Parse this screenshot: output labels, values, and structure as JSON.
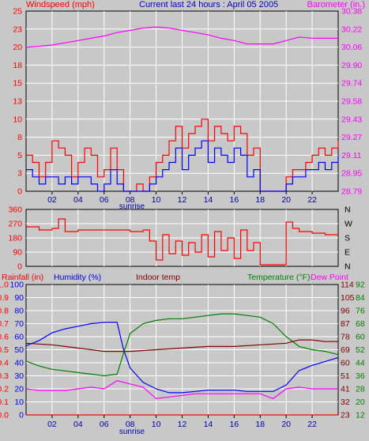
{
  "chart_data": [
    {
      "type": "line",
      "header": {
        "left": "Windspeed (mph)",
        "center": "Current last 24 hours : April 05 2005",
        "right": "Barometer (in.)"
      },
      "x_ticks": [
        "02",
        "04",
        "06",
        "08",
        "10",
        "12",
        "14",
        "16",
        "18",
        "20",
        "22"
      ],
      "x_marker": "sunrise",
      "x_range": [
        0,
        24
      ],
      "y_left": {
        "ticks": [
          "0",
          "3",
          "5",
          "8",
          "10",
          "13",
          "15",
          "18",
          "20",
          "23",
          "25"
        ],
        "range": [
          0,
          25
        ]
      },
      "y_right": {
        "ticks": [
          "28.79",
          "28.95",
          "29.11",
          "29.27",
          "29.43",
          "29.58",
          "29.74",
          "29.90",
          "30.06",
          "30.22",
          "30.38"
        ],
        "range": [
          28.79,
          30.38
        ]
      },
      "series": [
        {
          "name": "Barometer",
          "axis": "right",
          "color": "#ff00ff",
          "x": [
            0,
            1,
            2,
            3,
            4,
            5,
            6,
            7,
            8,
            9,
            10,
            11,
            12,
            13,
            14,
            15,
            16,
            17,
            18,
            19,
            20,
            21,
            22,
            23,
            24
          ],
          "y": [
            30.06,
            30.07,
            30.08,
            30.1,
            30.12,
            30.14,
            30.16,
            30.19,
            30.21,
            30.23,
            30.24,
            30.23,
            30.21,
            30.19,
            30.17,
            30.14,
            30.12,
            30.09,
            30.09,
            30.09,
            30.12,
            30.15,
            30.14,
            30.14,
            30.14
          ]
        },
        {
          "name": "Wind gust",
          "axis": "left",
          "color": "#ff0000",
          "x": [
            0,
            0.5,
            1,
            1.5,
            2,
            2.5,
            3,
            3.5,
            4,
            4.5,
            5,
            5.5,
            6,
            6.5,
            7,
            7.5,
            8,
            8.5,
            9,
            9.5,
            10,
            10.5,
            11,
            11.5,
            12,
            12.5,
            13,
            13.5,
            14,
            14.5,
            15,
            15.5,
            16,
            16.5,
            17,
            17.5,
            18,
            18.5,
            19,
            19.5,
            20,
            20.5,
            21,
            21.5,
            22,
            22.5,
            23,
            23.5,
            24
          ],
          "y": [
            5,
            4,
            2,
            4,
            7,
            6,
            5,
            2,
            4,
            6,
            5,
            2,
            3,
            6,
            3,
            0,
            0,
            1,
            0,
            2,
            4,
            5,
            7,
            9,
            6,
            8,
            9,
            10,
            7,
            9,
            8,
            7,
            9,
            8,
            5,
            6,
            0,
            0,
            0,
            0,
            2,
            3,
            3,
            4,
            5,
            6,
            5,
            6,
            7
          ]
        },
        {
          "name": "Windspeed",
          "axis": "left",
          "color": "#0000ff",
          "x": [
            0,
            0.5,
            1,
            1.5,
            2,
            2.5,
            3,
            3.5,
            4,
            4.5,
            5,
            5.5,
            6,
            6.5,
            7,
            7.5,
            8,
            8.5,
            9,
            9.5,
            10,
            10.5,
            11,
            11.5,
            12,
            12.5,
            13,
            13.5,
            14,
            14.5,
            15,
            15.5,
            16,
            16.5,
            17,
            17.5,
            18,
            18.5,
            19,
            19.5,
            20,
            20.5,
            21,
            21.5,
            22,
            22.5,
            23,
            23.5,
            24
          ],
          "y": [
            3,
            2,
            1,
            2,
            2,
            1,
            2,
            1,
            2,
            2,
            1,
            0,
            1,
            3,
            1,
            0,
            0,
            0,
            0,
            1,
            2,
            3,
            4,
            6,
            3,
            5,
            6,
            7,
            4,
            6,
            5,
            4,
            6,
            5,
            2,
            3,
            0,
            0,
            0,
            0,
            1,
            2,
            2,
            3,
            3,
            4,
            3,
            4,
            5
          ]
        }
      ]
    },
    {
      "type": "line",
      "title": "",
      "x_range": [
        0,
        24
      ],
      "y_left": {
        "ticks": [
          "0",
          "90",
          "180",
          "270",
          "360"
        ],
        "range": [
          0,
          360
        ]
      },
      "y_right": {
        "ticks": [
          "N",
          "E",
          "S",
          "W",
          "N"
        ]
      },
      "series": [
        {
          "name": "Wind direction",
          "color": "#ff0000",
          "x": [
            0,
            1,
            2,
            2.5,
            3,
            4,
            5,
            6,
            7,
            8,
            9,
            9.5,
            10,
            10.5,
            11,
            11.5,
            12,
            12.5,
            13,
            13.5,
            14,
            14.5,
            15,
            15.5,
            16,
            16.5,
            17,
            17.5,
            18,
            18.5,
            19,
            19.5,
            20,
            20.5,
            21,
            22,
            23,
            24
          ],
          "y": [
            250,
            230,
            240,
            300,
            220,
            230,
            230,
            230,
            230,
            220,
            230,
            160,
            40,
            200,
            80,
            160,
            70,
            150,
            90,
            200,
            60,
            220,
            100,
            180,
            50,
            230,
            100,
            150,
            10,
            10,
            10,
            10,
            280,
            240,
            220,
            210,
            200,
            200
          ]
        }
      ]
    },
    {
      "type": "line",
      "header": {
        "rainfall": "Rainfall (in)",
        "humidity": "Humidity (%)",
        "indoor": "Indoor temp",
        "temperature": "Temperature (°F)",
        "dewpoint": "Dew Point"
      },
      "x_ticks": [
        "02",
        "04",
        "06",
        "08",
        "10",
        "12",
        "14",
        "16",
        "18",
        "20",
        "22"
      ],
      "x_marker": "sunrise",
      "x_range": [
        0,
        24
      ],
      "y_rain": {
        "ticks": [
          "0.0",
          "0.1",
          "0.2",
          "0.3",
          "0.4",
          "0.5",
          "0.6",
          "0.7",
          "0.8",
          "0.9",
          "1.0"
        ],
        "range": [
          0,
          1
        ]
      },
      "y_humidity": {
        "ticks": [
          "0",
          "10",
          "20",
          "30",
          "40",
          "50",
          "60",
          "70",
          "80",
          "90",
          "100"
        ],
        "range": [
          0,
          100
        ]
      },
      "y_temp_a": {
        "ticks": [
          "23",
          "32",
          "41",
          "51",
          "60",
          "69",
          "78",
          "87",
          "96",
          "105",
          "114"
        ]
      },
      "y_temp_b": {
        "ticks": [
          "12",
          "20",
          "28",
          "36",
          "44",
          "52",
          "60",
          "68",
          "76",
          "84",
          "92"
        ],
        "range": [
          12,
          92
        ]
      },
      "series": [
        {
          "name": "Humidity",
          "axis": "humidity",
          "color": "#0000ff",
          "x": [
            0,
            1,
            2,
            3,
            4,
            5,
            6,
            7,
            7.5,
            8,
            9,
            10,
            11,
            12,
            13,
            14,
            15,
            16,
            17,
            18,
            19,
            20,
            21,
            22,
            23,
            24
          ],
          "y": [
            53,
            57,
            63,
            66,
            68,
            70,
            71,
            71,
            50,
            36,
            25,
            20,
            17,
            17,
            18,
            19,
            19,
            19,
            18,
            18,
            18,
            23,
            34,
            38,
            41,
            44
          ]
        },
        {
          "name": "Temperature",
          "axis": "temp_b",
          "color": "#008000",
          "x": [
            0,
            1,
            2,
            3,
            4,
            5,
            6,
            7,
            7.5,
            8,
            9,
            10,
            11,
            12,
            13,
            14,
            15,
            16,
            17,
            18,
            19,
            20,
            21,
            22,
            23,
            24
          ],
          "y": [
            45,
            42,
            40,
            39,
            38,
            37,
            36,
            37,
            50,
            62,
            68,
            70,
            71,
            71,
            72,
            73,
            74,
            74,
            73,
            72,
            68,
            60,
            54,
            52,
            51,
            49
          ]
        },
        {
          "name": "Dew Point",
          "axis": "temp_b",
          "color": "#ff00ff",
          "x": [
            0,
            1,
            2,
            3,
            4,
            5,
            6,
            7,
            8,
            9,
            10,
            11,
            12,
            13,
            14,
            15,
            16,
            17,
            18,
            19,
            20,
            21,
            22,
            23,
            24
          ],
          "y": [
            28,
            27,
            27,
            27,
            28,
            29,
            28,
            33,
            31,
            29,
            22,
            23,
            24,
            25,
            25,
            25,
            25,
            25,
            25,
            22,
            28,
            29,
            28,
            28,
            28
          ]
        },
        {
          "name": "Indoor temp",
          "axis": "temp_b",
          "color": "#800000",
          "x": [
            0,
            2,
            4,
            6,
            8,
            10,
            12,
            14,
            16,
            18,
            20,
            21,
            22,
            23,
            24
          ],
          "y": [
            56,
            55,
            53,
            51,
            51,
            52,
            53,
            54,
            54,
            55,
            56,
            58,
            58,
            57,
            57
          ]
        },
        {
          "name": "Rainfall",
          "axis": "rain",
          "color": "#ff0000",
          "x": [
            0,
            24
          ],
          "y": [
            0,
            0
          ]
        }
      ]
    }
  ]
}
